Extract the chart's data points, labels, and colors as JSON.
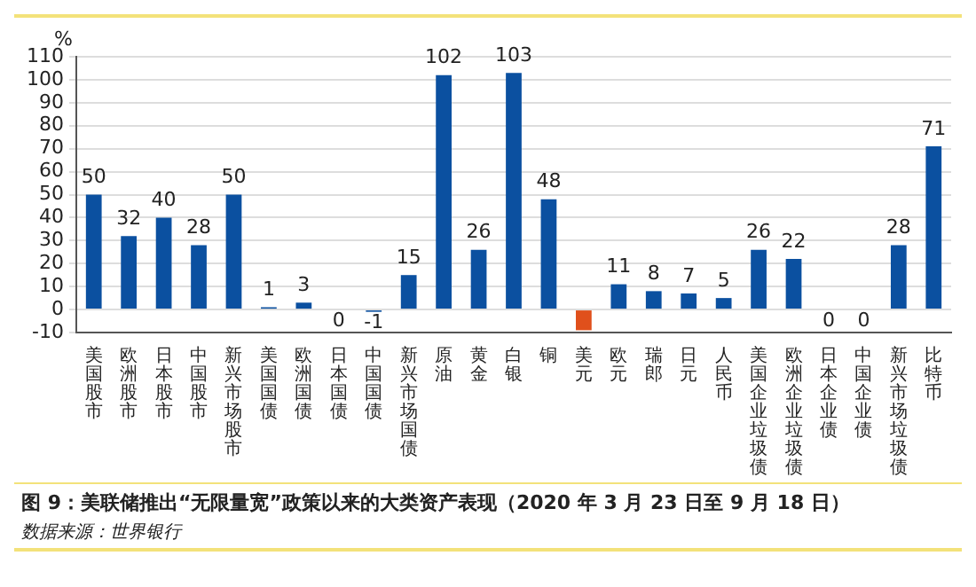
{
  "chart_data": {
    "type": "bar",
    "title": "图 9：美联储推出“无限量宽”政策以来的大类资产表现（2020 年 3 月 23 日至 9 月 18 日）",
    "ylabel": "%",
    "annotations": [
      "数据来源：世界银行"
    ],
    "categories": [
      "美国股市",
      "欧洲股市",
      "日本股市",
      "中国股市",
      "新兴市场股市",
      "美国国债",
      "欧洲国债",
      "日本国债",
      "中国国债",
      "新兴市场国债",
      "原油",
      "黄金",
      "白银",
      "铜",
      "美元",
      "欧元",
      "瑞郎",
      "日元",
      "人民币",
      "美国企业垃圾债",
      "欧洲企业垃圾债",
      "日本企业债",
      "中国企业债",
      "新兴市场垃圾债",
      "比特币"
    ],
    "values": [
      50,
      32,
      40,
      28,
      50,
      1,
      3,
      0,
      -1,
      15,
      102,
      26,
      103,
      48,
      -9,
      11,
      8,
      7,
      5,
      26,
      22,
      0,
      0,
      28,
      71
    ],
    "value_labels": [
      "50",
      "32",
      "40",
      "28",
      "50",
      "1",
      "3",
      "0",
      "-1",
      "15",
      "102",
      "26",
      "103",
      "48",
      null,
      "11",
      "8",
      "7",
      "5",
      "26",
      "22",
      "0",
      "0",
      "28",
      "71"
    ],
    "colors": [
      "#0b50a0",
      "#0b50a0",
      "#0b50a0",
      "#0b50a0",
      "#0b50a0",
      "#0b50a0",
      "#0b50a0",
      "#0b50a0",
      "#0b50a0",
      "#0b50a0",
      "#0b50a0",
      "#0b50a0",
      "#0b50a0",
      "#0b50a0",
      "#e0501c",
      "#0b50a0",
      "#0b50a0",
      "#0b50a0",
      "#0b50a0",
      "#0b50a0",
      "#0b50a0",
      "#0b50a0",
      "#0b50a0",
      "#0b50a0",
      "#0b50a0"
    ],
    "ylim": [
      -10,
      110
    ],
    "yticks": [
      -10,
      0,
      10,
      20,
      30,
      40,
      50,
      60,
      70,
      80,
      90,
      100,
      110
    ],
    "grid": "y",
    "legend": false
  }
}
